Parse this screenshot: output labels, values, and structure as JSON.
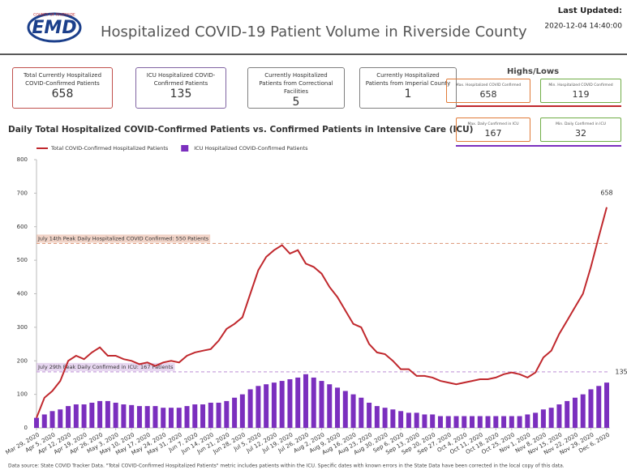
{
  "header": {
    "logo": "EMD",
    "logo_caption": "COUNTY OF RIVERSIDE",
    "title": "Hospitalized COVID-19 Patient Volume in Riverside County",
    "updated_label": "Last Updated:",
    "updated_value": "2020-12-04 14:40:00"
  },
  "kpis": [
    {
      "label": "Total Currently Hospitalized COVID-Confirmed Patients",
      "value": 658,
      "color": "#c0504d"
    },
    {
      "label": "ICU Hospitalized COVID-Confirmed Patients",
      "value": 135,
      "color": "#8064a2"
    },
    {
      "label": "Currently Hospitalized Patients from Correctional Facilities",
      "value": 5,
      "color": "#7f7f7f"
    },
    {
      "label": "Currently Hospitalized Patients from Imperial County",
      "value": 1,
      "color": "#7f7f7f"
    }
  ],
  "highs_lows": {
    "title": "Highs/Lows",
    "items": [
      {
        "label": "Max. Hospitalized COVID Confirmed",
        "value": 658,
        "color": "#e07b39"
      },
      {
        "label": "Min. Hospitalized COVID Confirmed",
        "value": 119,
        "color": "#70ad47"
      },
      {
        "label": "Max. Daily Confirmed in ICU",
        "value": 167,
        "color": "#e07b39"
      },
      {
        "label": "Min. Daily Confirmed in ICU",
        "value": 32,
        "color": "#70ad47"
      }
    ]
  },
  "chart_data": {
    "type": "combo",
    "title": "Daily Total Hospitalized COVID-Confirmed Patients vs. Confirmed Patients in Intensive Care (ICU)",
    "legend": "top-left",
    "grid": false,
    "ylim": [
      0,
      800
    ],
    "yticks": [
      0,
      100,
      200,
      300,
      400,
      500,
      600,
      700,
      800
    ],
    "categories": [
      "Mar 29, 2020",
      null,
      "Apr 5, 2020",
      null,
      "Apr 12, 2020",
      null,
      "Apr 19, 2020",
      null,
      "Apr 26, 2020",
      null,
      "May 3, 2020",
      null,
      "May 10, 2020",
      null,
      "May 17, 2020",
      null,
      "May 24, 2020",
      null,
      "May 31, 2020",
      null,
      "Jun 7, 2020",
      null,
      "Jun 14, 2020",
      null,
      "Jun 21, 2020",
      null,
      "Jun 28, 2020",
      null,
      "Jul 5, 2020",
      null,
      "Jul 12, 2020",
      null,
      "Jul 19, 2020",
      null,
      "Jul 26, 2020",
      null,
      "Aug 2, 2020",
      null,
      "Aug 9, 2020",
      null,
      "Aug 16, 2020",
      null,
      "Aug 23, 2020",
      null,
      "Aug 30, 2020",
      null,
      "Sep 6, 2020",
      null,
      "Sep 13, 2020",
      null,
      "Sep 20, 2020",
      null,
      "Sep 27, 2020",
      null,
      "Oct 4, 2020",
      null,
      "Oct 11, 2020",
      null,
      "Oct 18, 2020",
      null,
      "Oct 25, 2020",
      null,
      "Nov 1, 2020",
      null,
      "Nov 8, 2020",
      null,
      "Nov 15, 2020",
      null,
      "Nov 22, 2020",
      null,
      "Nov 29, 2020",
      null,
      "Dec 6, 2020"
    ],
    "series": [
      {
        "name": "Total COVID-Confirmed Hospitalized Patients",
        "type": "line",
        "color": "#c0282d",
        "values": [
          30,
          90,
          110,
          140,
          200,
          215,
          205,
          225,
          240,
          215,
          215,
          205,
          200,
          190,
          195,
          185,
          195,
          200,
          195,
          215,
          225,
          230,
          235,
          260,
          295,
          310,
          330,
          400,
          470,
          510,
          530,
          545,
          520,
          530,
          490,
          480,
          460,
          420,
          390,
          350,
          310,
          300,
          250,
          225,
          220,
          200,
          175,
          175,
          155,
          155,
          150,
          140,
          135,
          130,
          135,
          140,
          145,
          145,
          150,
          160,
          165,
          160,
          150,
          165,
          210,
          230,
          280,
          320,
          360,
          400,
          480,
          570,
          658
        ]
      },
      {
        "name": "ICU Hospitalized COVID-Confirmed Patients",
        "type": "bar",
        "color": "#7b2fbe",
        "values": [
          30,
          40,
          50,
          55,
          65,
          70,
          70,
          75,
          80,
          80,
          75,
          70,
          68,
          65,
          65,
          65,
          60,
          60,
          60,
          65,
          70,
          70,
          75,
          75,
          80,
          90,
          100,
          115,
          125,
          130,
          135,
          140,
          145,
          150,
          160,
          150,
          140,
          130,
          120,
          110,
          100,
          90,
          75,
          65,
          60,
          55,
          50,
          45,
          45,
          40,
          40,
          35,
          35,
          35,
          35,
          35,
          35,
          35,
          35,
          35,
          35,
          35,
          40,
          45,
          55,
          60,
          70,
          80,
          90,
          100,
          115,
          125,
          135
        ]
      }
    ],
    "annotations": [
      {
        "value": 550,
        "text": "July 14th Peak Daily Hospitalized COVID Confirmed: 550 Patients",
        "color": "#e0a084"
      },
      {
        "value": 167,
        "text": "July 29th Peak Daily Confirmed in ICU: 167 Patients",
        "color": "#c9a3de"
      }
    ]
  },
  "footer": "Data source: State COVID Tracker Data. \"Total COVID-Confirmed Hospitalized Patients\" metric includes patients within the ICU. Specific dates with known errors in the State Data have been corrected in the local copy of this data."
}
